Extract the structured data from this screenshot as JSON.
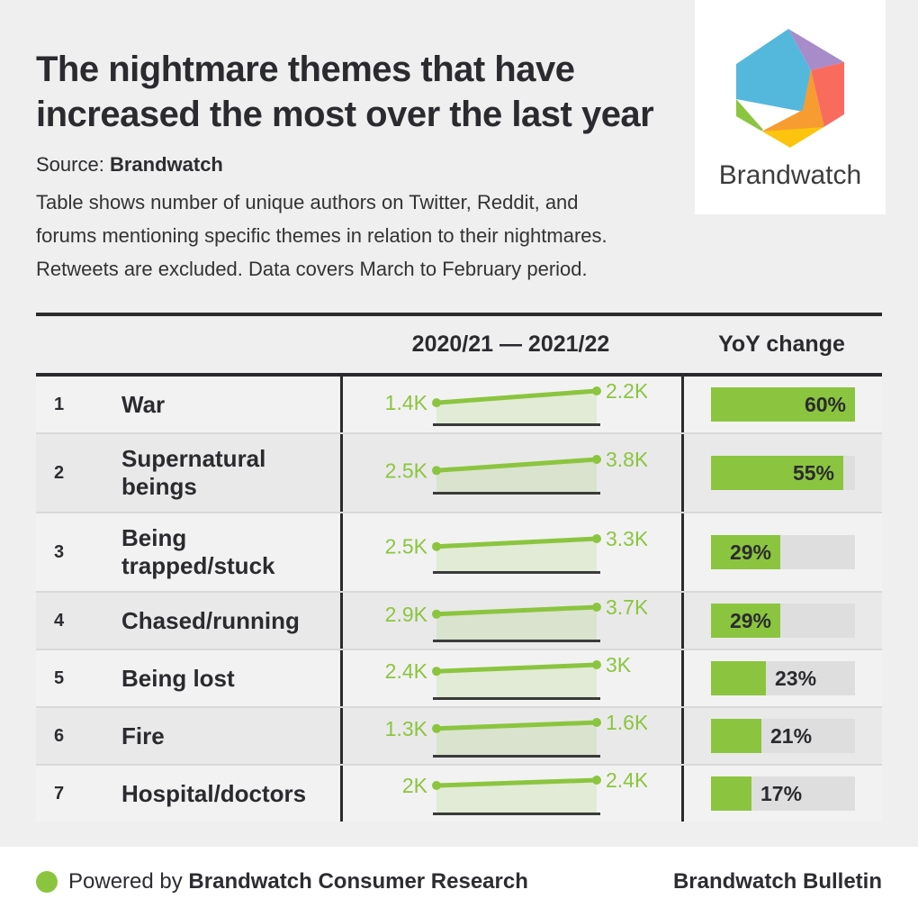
{
  "header": {
    "title_line1": "The nightmare themes that have",
    "title_line2": "increased the most over the last year",
    "source_prefix": "Source:",
    "source_name": "Brandwatch",
    "desc_line1": "Table shows number of unique authors on Twitter, Reddit, and",
    "desc_line2": "forums mentioning specific themes in relation to their nightmares.",
    "desc_line3": "Retweets are excluded. Data covers March to February period."
  },
  "logo": {
    "name": "Brandwatch"
  },
  "table": {
    "period_header": "2020/21 — 2021/22",
    "yoy_header": "YoY change"
  },
  "footer": {
    "powered_prefix": "Powered by",
    "powered_brand": "Brandwatch Consumer Research",
    "bulletin": "Brandwatch Bulletin"
  },
  "colors": {
    "accent_green": "#8bc53f",
    "page_bg": "#efefef",
    "row_odd": "#f2f2f2",
    "row_even": "#e9e9e9",
    "track_gray": "#dedede",
    "text_dark": "#2d2d31",
    "logo_blue": "#54b8dd",
    "logo_purple": "#a88bc9",
    "logo_red": "#f96b5d",
    "logo_orange": "#f79c31",
    "logo_yellow": "#fdc40f"
  },
  "chart_data": {
    "type": "table",
    "title": "The nightmare themes that have increased the most over the last year",
    "source": "Brandwatch",
    "note": "Table shows number of unique authors on Twitter, Reddit, and forums mentioning specific themes in relation to their nightmares. Retweets are excluded. Data covers March to February period.",
    "columns": [
      "Rank",
      "Theme",
      "2020/21 — 2021/22",
      "YoY change"
    ],
    "period_start": "2020/21",
    "period_end": "2021/22",
    "bar_axis_max_pct": 60,
    "sparkline_style": "line with area fill and endpoint dots over dark baseline",
    "rows": [
      {
        "rank": 1,
        "theme": "War",
        "start_value": 1400,
        "end_value": 2200,
        "start_label": "1.4K",
        "end_label": "2.2K",
        "yoy_pct": 60,
        "yoy_label": "60%"
      },
      {
        "rank": 2,
        "theme": "Supernatural beings",
        "start_value": 2500,
        "end_value": 3800,
        "start_label": "2.5K",
        "end_label": "3.8K",
        "yoy_pct": 55,
        "yoy_label": "55%"
      },
      {
        "rank": 3,
        "theme": "Being trapped/stuck",
        "start_value": 2500,
        "end_value": 3300,
        "start_label": "2.5K",
        "end_label": "3.3K",
        "yoy_pct": 29,
        "yoy_label": "29%"
      },
      {
        "rank": 4,
        "theme": "Chased/running",
        "start_value": 2900,
        "end_value": 3700,
        "start_label": "2.9K",
        "end_label": "3.7K",
        "yoy_pct": 29,
        "yoy_label": "29%"
      },
      {
        "rank": 5,
        "theme": "Being lost",
        "start_value": 2400,
        "end_value": 3000,
        "start_label": "2.4K",
        "end_label": "3K",
        "yoy_pct": 23,
        "yoy_label": "23%"
      },
      {
        "rank": 6,
        "theme": "Fire",
        "start_value": 1300,
        "end_value": 1600,
        "start_label": "1.3K",
        "end_label": "1.6K",
        "yoy_pct": 21,
        "yoy_label": "21%"
      },
      {
        "rank": 7,
        "theme": "Hospital/doctors",
        "start_value": 2000,
        "end_value": 2400,
        "start_label": "2K",
        "end_label": "2.4K",
        "yoy_pct": 17,
        "yoy_label": "17%"
      }
    ]
  }
}
